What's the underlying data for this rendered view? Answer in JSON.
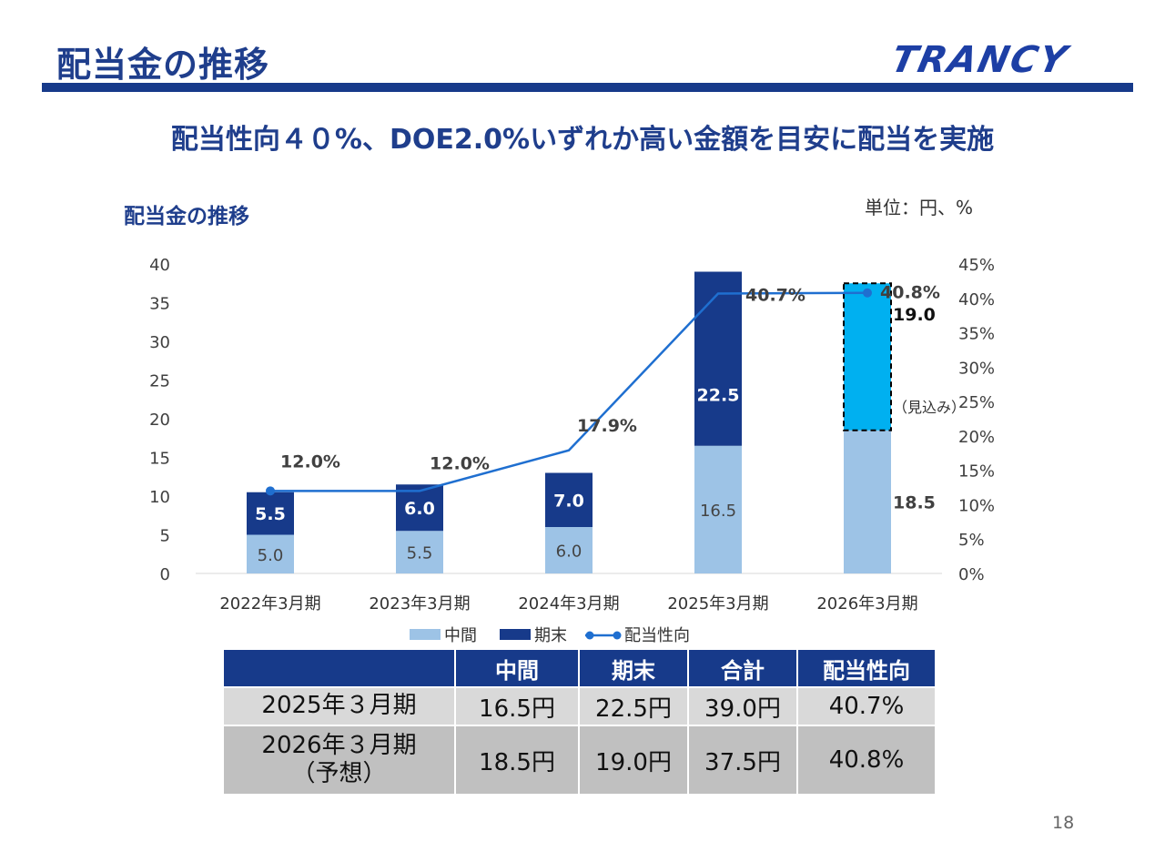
{
  "header": {
    "title": "配当金の推移",
    "logo_text": "TRANCY",
    "subtitle": "配当性向４０%、DOE2.0%いずれか高い金額を目安に配当を実施"
  },
  "chart_section": {
    "title": "配当金の推移",
    "unit": "単位：円、%"
  },
  "chart_data": {
    "type": "bar",
    "stacked": true,
    "categories": [
      "2022年3月期",
      "2023年3月期",
      "2024年3月期",
      "2025年3月期",
      "2026年3月期"
    ],
    "series": [
      {
        "name": "中間",
        "values": [
          5.0,
          5.5,
          6.0,
          16.5,
          18.5
        ],
        "labels": [
          "5.0",
          "5.5",
          "6.0",
          "16.5",
          "18.5"
        ],
        "color": "#9dc3e6"
      },
      {
        "name": "期末",
        "values": [
          5.5,
          6.0,
          7.0,
          22.5,
          19.0
        ],
        "labels": [
          "5.5",
          "6.0",
          "7.0",
          "22.5",
          "19.0"
        ],
        "color": "#173a8a",
        "forecast_color": "#00b0f0"
      },
      {
        "name": "配当性向",
        "type": "line",
        "axis": "right",
        "values": [
          12.0,
          12.0,
          17.9,
          40.7,
          40.8
        ],
        "labels": [
          "12.0%",
          "12.0%",
          "17.9%",
          "40.7%",
          "40.8%"
        ],
        "color": "#1f6fd0"
      }
    ],
    "y_left": {
      "ylim": [
        0,
        40
      ],
      "ticks": [
        "0",
        "5",
        "10",
        "15",
        "20",
        "25",
        "30",
        "35",
        "40"
      ]
    },
    "y_right": {
      "ylim": [
        0,
        45
      ],
      "ticks": [
        "0%",
        "5%",
        "10%",
        "15%",
        "20%",
        "25%",
        "30%",
        "35%",
        "40%",
        "45%"
      ]
    },
    "forecast_note": "（見込み）",
    "legend": [
      "中間",
      "期末",
      "配当性向"
    ]
  },
  "table": {
    "headers": [
      "",
      "中間",
      "期末",
      "合計",
      "配当性向"
    ],
    "rows": [
      {
        "label": "2025年３月期",
        "sublabel": "",
        "values": [
          "16.5円",
          "22.5円",
          "39.0円",
          "40.7%"
        ]
      },
      {
        "label": "2026年３月期",
        "sublabel": "（予想）",
        "values": [
          "18.5円",
          "19.0円",
          "37.5円",
          "40.8%"
        ]
      }
    ]
  },
  "page_number": "18",
  "colors": {
    "primary": "#173a8a",
    "interim": "#9dc3e6",
    "forecast": "#00b0f0",
    "line": "#1f6fd0"
  }
}
